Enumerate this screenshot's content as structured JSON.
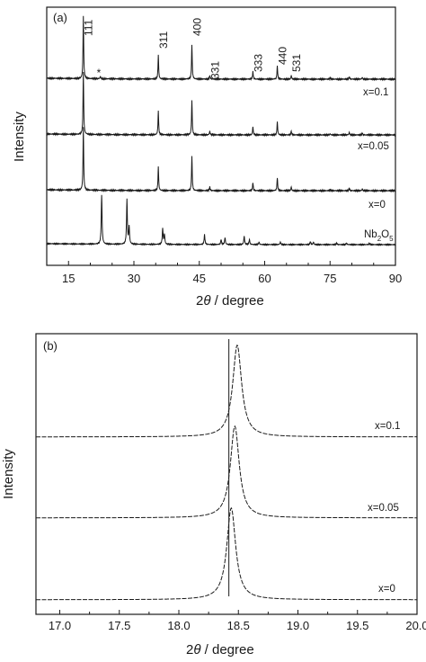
{
  "chart_data": [
    {
      "type": "line",
      "panel_label": "(a)",
      "xlabel": "2θ / degree",
      "ylabel": "Intensity",
      "xlim": [
        10,
        90
      ],
      "x_ticks": [
        15,
        30,
        45,
        60,
        75,
        90
      ],
      "y_ticks": [],
      "grid": false,
      "series": [
        {
          "name": "x=0.1",
          "peaks": [
            [
              18.4,
              1.0
            ],
            [
              22.3,
              0.04
            ],
            [
              35.6,
              0.38
            ],
            [
              43.3,
              0.55
            ],
            [
              47.4,
              0.06
            ],
            [
              57.3,
              0.12
            ],
            [
              62.9,
              0.21
            ],
            [
              66.1,
              0.06
            ],
            [
              75.0,
              0.02
            ],
            [
              79.4,
              0.04
            ],
            [
              82.4,
              0.03
            ]
          ]
        },
        {
          "name": "x=0.05",
          "peaks": [
            [
              18.4,
              1.0
            ],
            [
              35.6,
              0.38
            ],
            [
              43.3,
              0.55
            ],
            [
              47.4,
              0.06
            ],
            [
              57.3,
              0.13
            ],
            [
              62.9,
              0.21
            ],
            [
              66.1,
              0.06
            ],
            [
              75.0,
              0.02
            ],
            [
              79.4,
              0.04
            ],
            [
              82.4,
              0.03
            ]
          ]
        },
        {
          "name": "x=0",
          "peaks": [
            [
              18.4,
              1.0
            ],
            [
              35.6,
              0.38
            ],
            [
              43.3,
              0.55
            ],
            [
              47.4,
              0.06
            ],
            [
              57.3,
              0.13
            ],
            [
              62.9,
              0.21
            ],
            [
              66.1,
              0.06
            ],
            [
              75.0,
              0.02
            ],
            [
              79.4,
              0.04
            ],
            [
              82.4,
              0.03
            ]
          ]
        },
        {
          "name": "Nb2O5",
          "peaks": [
            [
              22.6,
              1.0
            ],
            [
              28.4,
              0.9
            ],
            [
              28.9,
              0.35
            ],
            [
              36.6,
              0.32
            ],
            [
              37.0,
              0.2
            ],
            [
              46.2,
              0.2
            ],
            [
              50.0,
              0.1
            ],
            [
              50.9,
              0.14
            ],
            [
              55.3,
              0.17
            ],
            [
              56.5,
              0.1
            ],
            [
              58.7,
              0.05
            ],
            [
              63.6,
              0.05
            ],
            [
              70.5,
              0.06
            ],
            [
              71.2,
              0.05
            ],
            [
              76.5,
              0.03
            ],
            [
              78.8,
              0.03
            ],
            [
              84.0,
              0.03
            ]
          ]
        }
      ],
      "annotations": [
        {
          "text": "111",
          "x": 18.4
        },
        {
          "text": "*",
          "x": 22.3
        },
        {
          "text": "311",
          "x": 35.6
        },
        {
          "text": "400",
          "x": 43.3
        },
        {
          "text": "331",
          "x": 47.4
        },
        {
          "text": "333",
          "x": 57.3
        },
        {
          "text": "440",
          "x": 62.9
        },
        {
          "text": "531",
          "x": 66.1
        }
      ]
    },
    {
      "type": "line",
      "panel_label": "(b)",
      "xlabel": "2θ / degree",
      "ylabel": "Intensity",
      "xlim": [
        16.8,
        20.0
      ],
      "x_ticks": [
        17.0,
        17.5,
        18.0,
        18.5,
        19.0,
        19.5,
        20.0
      ],
      "y_ticks": [],
      "grid": false,
      "reference_line_x": 18.42,
      "series": [
        {
          "name": "x=0.1",
          "peak_x": 18.49
        },
        {
          "name": "x=0.05",
          "peak_x": 18.47
        },
        {
          "name": "x=0",
          "peak_x": 18.44
        }
      ]
    }
  ],
  "labels": {
    "a_panel": "(a)",
    "b_panel": "(b)",
    "a_xlabel_prefix": "2",
    "a_xlabel_theta": "θ",
    "a_xlabel_suffix": " / degree",
    "b_xlabel_prefix": "2",
    "b_xlabel_theta": "θ",
    "b_xlabel_suffix": " / degree",
    "a_ylabel": "Intensity",
    "b_ylabel": "Intensity",
    "a_series_1": "x=0.1",
    "a_series_2": "x=0.05",
    "a_series_3": "x=0",
    "a_series_4_main": "Nb",
    "a_series_4_sub1": "2",
    "a_series_4_mid": "O",
    "a_series_4_sub2": "5",
    "b_series_1": "x=0.1",
    "b_series_2": "x=0.05",
    "b_series_3": "x=0"
  }
}
